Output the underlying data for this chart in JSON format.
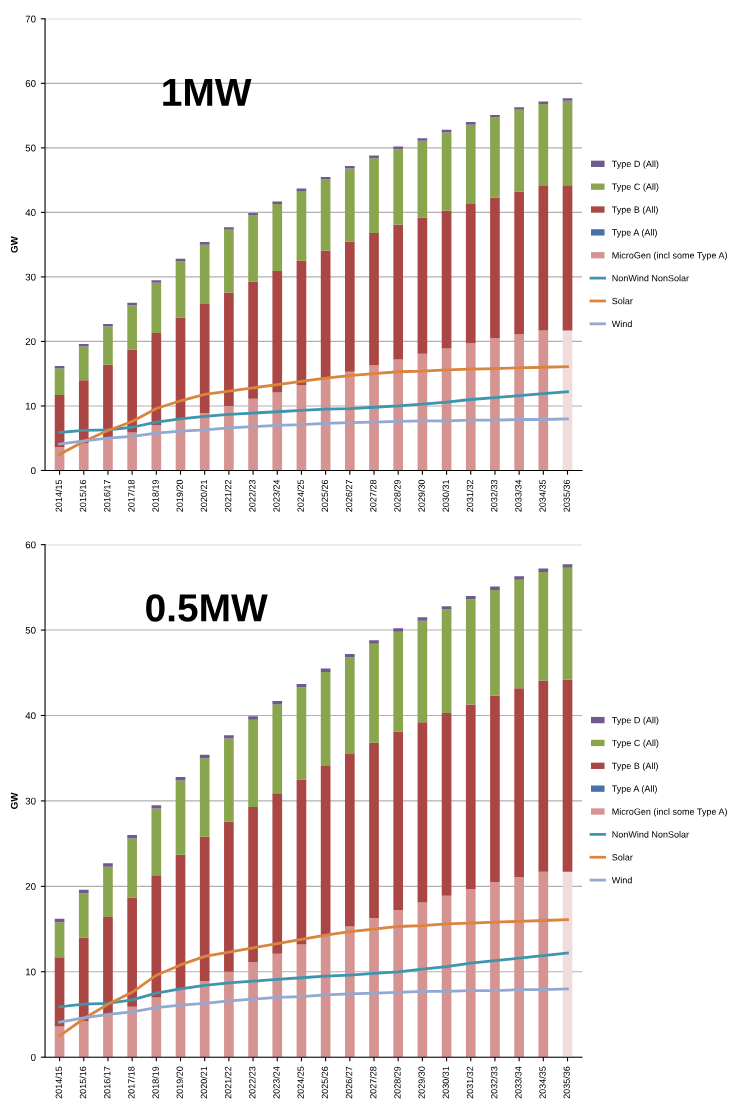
{
  "chart_data": [
    {
      "type": "bar",
      "title": "1MW",
      "ylabel": "GW",
      "stacked": true,
      "grid": "y",
      "legend": "right",
      "marker": "none",
      "categories": [
        "2014/15",
        "2015/16",
        "2016/17",
        "2017/18",
        "2018/19",
        "2019/20",
        "2020/21",
        "2021/22",
        "2022/23",
        "2023/24",
        "2024/25",
        "2025/26",
        "2026/27",
        "2027/28",
        "2028/29",
        "2029/30",
        "2030/31",
        "2031/32",
        "2032/33",
        "2033/34",
        "2034/35",
        "2035/36"
      ],
      "ylim": [
        0,
        70
      ],
      "yticks": [
        0,
        10,
        20,
        30,
        40,
        50,
        60,
        70
      ],
      "series": [
        {
          "name": "MicroGen (incl some Type A)",
          "colors": [
            "#d59391",
            "#d59391",
            "#d59391",
            "#d59391",
            "#d59391",
            "#d59391",
            "#d59391",
            "#d59391",
            "#d59391",
            "#d59391",
            "#d59391",
            "#d59391",
            "#d59391",
            "#d59391",
            "#d59391",
            "#d59391",
            "#d59391",
            "#d59391",
            "#d59391",
            "#d59391",
            "#d59391",
            "#f2dcdb"
          ],
          "values": [
            3.6,
            4.2,
            5.0,
            5.9,
            7.0,
            8.0,
            8.9,
            10.0,
            11.1,
            12.1,
            13.2,
            14.3,
            15.3,
            16.3,
            17.2,
            18.1,
            18.9,
            19.7,
            20.5,
            21.1,
            21.7,
            21.7
          ]
        },
        {
          "name": "Type A (All)",
          "color": "#4572a7",
          "values": [
            0,
            0,
            0,
            0,
            0,
            0,
            0,
            0,
            0,
            0,
            0,
            0,
            0,
            0,
            0,
            0,
            0,
            0,
            0,
            0,
            0,
            0
          ]
        },
        {
          "name": "Type B (All)",
          "color": "#aa4643",
          "values": [
            8.1,
            9.8,
            11.4,
            12.8,
            14.3,
            15.7,
            16.9,
            17.6,
            18.2,
            18.8,
            19.3,
            19.8,
            20.2,
            20.5,
            20.9,
            21.1,
            21.4,
            21.6,
            21.8,
            22.1,
            22.4,
            22.5
          ]
        },
        {
          "name": "Type C (All)",
          "color": "#89a54e",
          "values": [
            4.1,
            5.2,
            5.9,
            6.9,
            7.8,
            8.7,
            9.2,
            9.7,
            10.2,
            10.4,
            10.8,
            11.0,
            11.3,
            11.6,
            11.7,
            11.9,
            12.1,
            12.3,
            12.4,
            12.7,
            12.7,
            13.1
          ]
        },
        {
          "name": "Type D (All)",
          "color": "#71588f",
          "values": [
            0.4,
            0.4,
            0.4,
            0.4,
            0.4,
            0.4,
            0.4,
            0.4,
            0.4,
            0.4,
            0.4,
            0.4,
            0.4,
            0.4,
            0.4,
            0.4,
            0.4,
            0.4,
            0.4,
            0.4,
            0.4,
            0.4
          ]
        },
        {
          "name": "NonWind NonSolar",
          "type": "line",
          "color": "#3d96ae",
          "values": [
            5.9,
            6.2,
            6.3,
            6.7,
            7.5,
            8.0,
            8.4,
            8.7,
            8.9,
            9.1,
            9.3,
            9.5,
            9.6,
            9.8,
            10.0,
            10.3,
            10.6,
            11.0,
            11.3,
            11.6,
            11.9,
            12.2
          ]
        },
        {
          "name": "Solar",
          "type": "line",
          "color": "#db843d",
          "values": [
            2.5,
            4.5,
            6.2,
            7.6,
            9.6,
            10.8,
            11.8,
            12.3,
            12.8,
            13.3,
            13.8,
            14.3,
            14.7,
            15.0,
            15.3,
            15.4,
            15.6,
            15.7,
            15.8,
            15.9,
            16.0,
            16.1
          ]
        },
        {
          "name": "Wind",
          "type": "line",
          "color": "#93a9cf",
          "values": [
            4.1,
            4.6,
            5.0,
            5.3,
            5.8,
            6.1,
            6.3,
            6.6,
            6.8,
            7.0,
            7.1,
            7.3,
            7.4,
            7.5,
            7.6,
            7.7,
            7.7,
            7.8,
            7.8,
            7.9,
            7.9,
            8.0
          ]
        }
      ]
    },
    {
      "type": "bar",
      "title": "0.5MW",
      "ylabel": "GW",
      "stacked": true,
      "grid": "y",
      "legend": "right",
      "marker": "none",
      "categories": [
        "2014/15",
        "2015/16",
        "2016/17",
        "2017/18",
        "2018/19",
        "2019/20",
        "2020/21",
        "2021/22",
        "2022/23",
        "2023/24",
        "2024/25",
        "2025/26",
        "2026/27",
        "2027/28",
        "2028/29",
        "2029/30",
        "2030/31",
        "2031/32",
        "2032/33",
        "2033/34",
        "2034/35",
        "2035/36"
      ],
      "ylim": [
        0,
        60
      ],
      "yticks": [
        0,
        10,
        20,
        30,
        40,
        50,
        60
      ],
      "series": [
        {
          "name": "MicroGen (incl some Type A)",
          "colors": [
            "#d59391",
            "#d59391",
            "#d59391",
            "#d59391",
            "#d59391",
            "#d59391",
            "#d59391",
            "#d59391",
            "#d59391",
            "#d59391",
            "#d59391",
            "#d59391",
            "#d59391",
            "#d59391",
            "#d59391",
            "#d59391",
            "#d59391",
            "#d59391",
            "#d59391",
            "#d59391",
            "#d59391",
            "#f2dcdb"
          ],
          "values": [
            3.6,
            4.2,
            5.0,
            5.9,
            7.0,
            8.0,
            8.9,
            10.0,
            11.1,
            12.1,
            13.2,
            14.3,
            15.3,
            16.3,
            17.2,
            18.1,
            18.9,
            19.7,
            20.5,
            21.1,
            21.7,
            21.7
          ]
        },
        {
          "name": "Type A (All)",
          "color": "#4572a7",
          "values": [
            0,
            0,
            0,
            0,
            0,
            0,
            0,
            0,
            0,
            0,
            0,
            0,
            0,
            0,
            0,
            0,
            0,
            0,
            0,
            0,
            0,
            0
          ]
        },
        {
          "name": "Type B (All)",
          "color": "#aa4643",
          "values": [
            8.1,
            9.8,
            11.4,
            12.8,
            14.3,
            15.7,
            16.9,
            17.6,
            18.2,
            18.8,
            19.3,
            19.8,
            20.2,
            20.5,
            20.9,
            21.1,
            21.4,
            21.6,
            21.8,
            22.1,
            22.4,
            22.5
          ]
        },
        {
          "name": "Type C (All)",
          "color": "#89a54e",
          "values": [
            4.1,
            5.2,
            5.9,
            6.9,
            7.8,
            8.7,
            9.2,
            9.7,
            10.2,
            10.4,
            10.8,
            11.0,
            11.3,
            11.6,
            11.7,
            11.9,
            12.1,
            12.3,
            12.4,
            12.7,
            12.7,
            13.1
          ]
        },
        {
          "name": "Type D (All)",
          "color": "#71588f",
          "values": [
            0.4,
            0.4,
            0.4,
            0.4,
            0.4,
            0.4,
            0.4,
            0.4,
            0.4,
            0.4,
            0.4,
            0.4,
            0.4,
            0.4,
            0.4,
            0.4,
            0.4,
            0.4,
            0.4,
            0.4,
            0.4,
            0.4
          ]
        },
        {
          "name": "NonWind NonSolar",
          "type": "line",
          "color": "#3d96ae",
          "values": [
            5.9,
            6.2,
            6.3,
            6.7,
            7.5,
            8.0,
            8.4,
            8.7,
            8.9,
            9.1,
            9.3,
            9.5,
            9.6,
            9.8,
            10.0,
            10.3,
            10.6,
            11.0,
            11.3,
            11.6,
            11.9,
            12.2
          ]
        },
        {
          "name": "Solar",
          "type": "line",
          "color": "#db843d",
          "values": [
            2.5,
            4.5,
            6.2,
            7.6,
            9.6,
            10.8,
            11.8,
            12.3,
            12.8,
            13.3,
            13.8,
            14.3,
            14.7,
            15.0,
            15.3,
            15.4,
            15.6,
            15.7,
            15.8,
            15.9,
            16.0,
            16.1
          ]
        },
        {
          "name": "Wind",
          "type": "line",
          "color": "#93a9cf",
          "values": [
            4.1,
            4.6,
            5.0,
            5.3,
            5.8,
            6.1,
            6.3,
            6.6,
            6.8,
            7.0,
            7.1,
            7.3,
            7.4,
            7.5,
            7.6,
            7.7,
            7.7,
            7.8,
            7.8,
            7.9,
            7.9,
            8.0
          ]
        }
      ]
    }
  ]
}
